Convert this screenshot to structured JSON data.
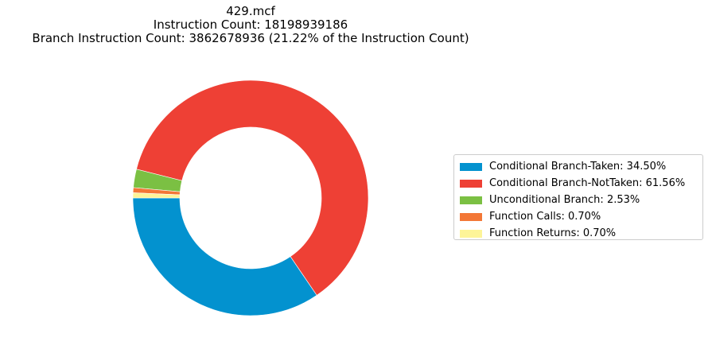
{
  "chart_data": {
    "type": "pie",
    "subtype": "donut",
    "title_lines": [
      "429.mcf",
      "Instruction Count: 18198939186",
      "Branch Instruction Count: 3862678936 (21.22% of the Instruction Count)"
    ],
    "slices": [
      {
        "label": "Conditional Branch-Taken",
        "value": 34.5,
        "color": "#0392cf",
        "legend": "Conditional Branch-Taken: 34.50%"
      },
      {
        "label": "Conditional Branch-NotTaken",
        "value": 61.56,
        "color": "#ee4035",
        "legend": "Conditional Branch-NotTaken: 61.56%"
      },
      {
        "label": "Unconditional Branch",
        "value": 2.53,
        "color": "#7bc043",
        "legend": "Unconditional Branch: 2.53%"
      },
      {
        "label": "Function Calls",
        "value": 0.7,
        "color": "#f37736",
        "legend": "Function Calls: 0.70%"
      },
      {
        "label": "Function Returns",
        "value": 0.7,
        "color": "#fdf498",
        "legend": "Function Returns: 0.70%"
      }
    ],
    "start_angle_deg": 180,
    "direction": "counterclockwise",
    "legend_position": "center-right"
  }
}
